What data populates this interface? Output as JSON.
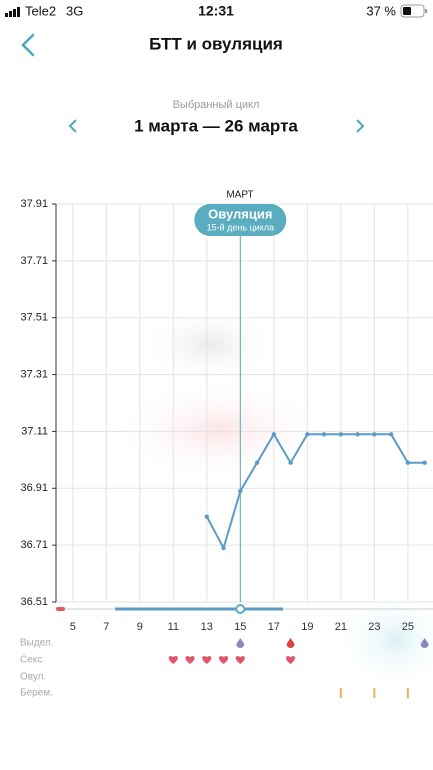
{
  "status_bar": {
    "carrier": "Tele2",
    "network": "3G",
    "time": "12:31",
    "battery": "37 %"
  },
  "header": {
    "title": "БТТ и овуляция"
  },
  "cycle": {
    "caption": "Выбранный цикл",
    "range": "1 марта — 26 марта"
  },
  "chart_data": {
    "type": "line",
    "month_label": "МАРТ",
    "x": [
      13,
      14,
      15,
      16,
      17,
      18,
      19,
      20,
      21,
      22,
      23,
      24,
      25,
      26
    ],
    "series": [
      {
        "color": "#5b9bc8",
        "values": [
          36.81,
          36.7,
          36.9,
          37.0,
          37.1,
          37.0,
          37.1,
          37.1,
          37.1,
          37.1,
          37.1,
          37.1,
          37.0,
          37.0
        ]
      }
    ],
    "xlim": [
      4,
      26.5
    ],
    "xticks": [
      5,
      7,
      9,
      11,
      13,
      15,
      17,
      19,
      21,
      23,
      25
    ],
    "ylim": [
      36.51,
      37.91
    ],
    "yticks": [
      36.51,
      36.71,
      36.91,
      37.11,
      37.31,
      37.51,
      37.71,
      37.91
    ],
    "grid": true,
    "ovulation": {
      "day": 15,
      "title": "Овуляция",
      "subtitle": "15-й день цикла",
      "color": "#5aacc0"
    },
    "rows": [
      {
        "label": "Выдел.",
        "days": [
          15,
          18,
          26
        ],
        "colors": [
          "#8e86c4",
          "#d9433b",
          "#8e86c4"
        ]
      },
      {
        "label": "Секс",
        "days": [
          11,
          12,
          13,
          14,
          15,
          18
        ],
        "colors": [
          "#e0566a",
          "#e0566a",
          "#e0566a",
          "#e0566a",
          "#e0566a",
          "#e0566a"
        ]
      },
      {
        "label": "Овул.",
        "days": [],
        "colors": []
      },
      {
        "label": "Берем.",
        "days": [
          21,
          23,
          25
        ],
        "colors": [
          "#f0b05a",
          "#f0b05a",
          "#f0b05a"
        ]
      }
    ]
  }
}
